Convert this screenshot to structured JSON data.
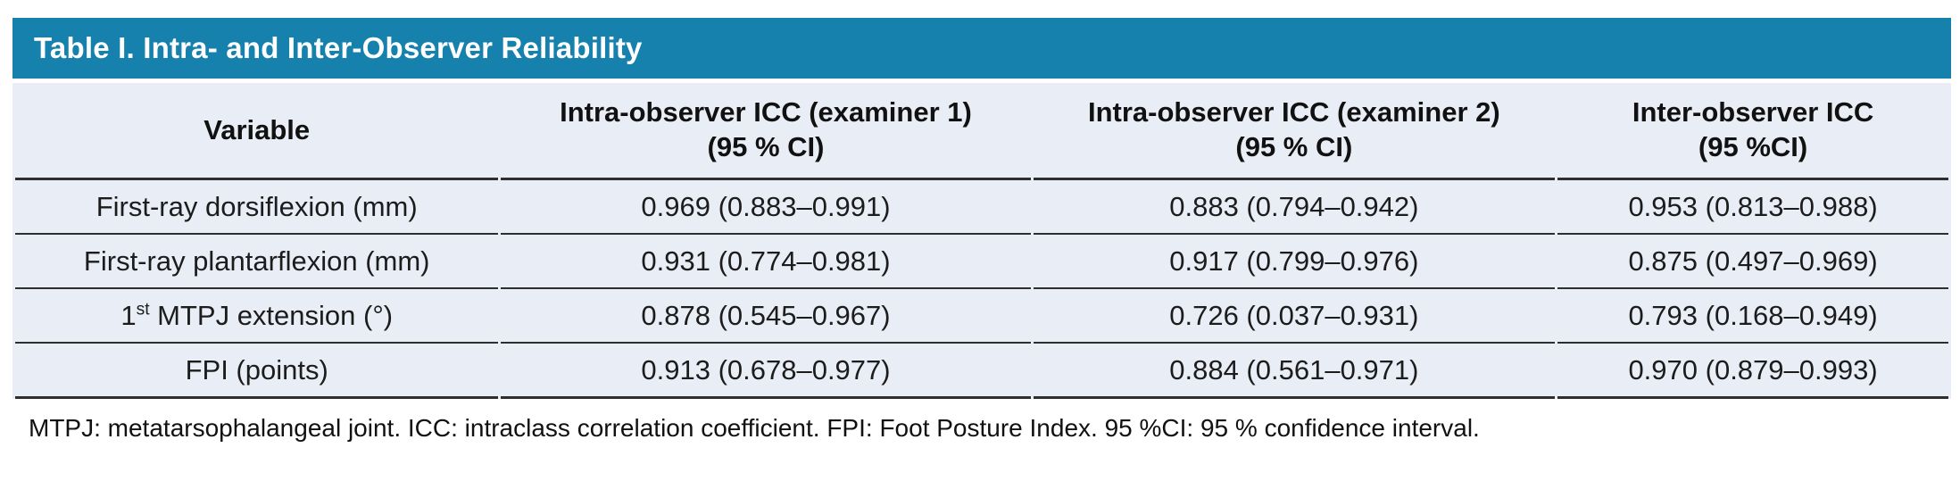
{
  "colors": {
    "title_bar_bg": "#1681ac",
    "title_text": "#ffffff",
    "row_bg": "#e9edf6",
    "rule": "#2e2e2e"
  },
  "title": "Table I. Intra- and Inter-Observer Reliability",
  "table": {
    "columns": [
      {
        "label": "Variable",
        "sub": ""
      },
      {
        "label": "Intra-observer ICC (examiner 1)",
        "sub": "(95 % CI)"
      },
      {
        "label": "Intra-observer ICC (examiner 2)",
        "sub": "(95 % CI)"
      },
      {
        "label": "Inter-observer ICC",
        "sub": "(95 %CI)"
      }
    ],
    "rows": [
      {
        "variable": "First-ray dorsiflexion (mm)",
        "icc1": "0.969 (0.883–0.991)",
        "icc2": "0.883 (0.794–0.942)",
        "inter": "0.953 (0.813–0.988)"
      },
      {
        "variable": "First-ray plantarflexion (mm)",
        "icc1": "0.931 (0.774–0.981)",
        "icc2": "0.917 (0.799–0.976)",
        "inter": "0.875 (0.497–0.969)"
      },
      {
        "variable_pre": "1",
        "variable_sup": "st",
        "variable_post": " MTPJ extension (°)",
        "icc1": "0.878 (0.545–0.967)",
        "icc2": "0.726 (0.037–0.931)",
        "inter": "0.793 (0.168–0.949)"
      },
      {
        "variable": "FPI (points)",
        "icc1": "0.913 (0.678–0.977)",
        "icc2": "0.884 (0.561–0.971)",
        "inter": "0.970 (0.879–0.993)"
      }
    ]
  },
  "footnote": "MTPJ: metatarsophalangeal joint. ICC: intraclass correlation coefficient. FPI: Foot Posture Index. 95 %CI: 95 % confidence interval."
}
